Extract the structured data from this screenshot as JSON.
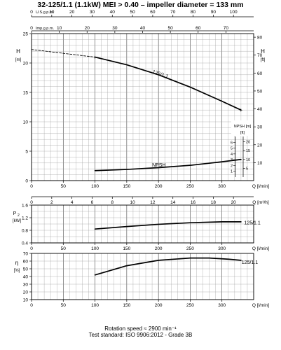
{
  "title": "32-125/1.1 (1.1kW) MEI > 0.40 – impeller diameter = 133 mm",
  "footer": {
    "rotation": "Rotation speed ≈ 2900 min⁻¹",
    "standard": "Test standard: ISO 9906:2012 - Grade 3B"
  },
  "chart_data": {
    "type": "line",
    "x_axes": {
      "main": {
        "label": "Q [l/min]",
        "range": [
          0,
          350
        ],
        "ticks": [
          0,
          50,
          100,
          150,
          200,
          250,
          300
        ]
      },
      "top_usgpm": {
        "label": "U.S.g.p.m.",
        "range": [
          0,
          110
        ],
        "ticks": [
          0,
          10,
          20,
          30,
          40,
          50,
          60,
          70,
          80,
          90,
          100
        ]
      },
      "top_impgpm": {
        "label": "Imp.g.p.m.",
        "range": [
          0,
          80
        ],
        "ticks": [
          0,
          10,
          20,
          30,
          40,
          50,
          60,
          70
        ]
      },
      "m3h": {
        "label": "Q [m³/h]",
        "range": [
          0,
          22
        ],
        "ticks": [
          0,
          2,
          4,
          6,
          8,
          10,
          12,
          14,
          16,
          18,
          20
        ]
      }
    },
    "panels": [
      {
        "id": "head",
        "ylabel": "H [m]",
        "ylabel_parts": [
          "H",
          "[m]"
        ],
        "ylim": [
          0,
          25
        ],
        "yticks": [
          0,
          5,
          10,
          15,
          20,
          25
        ],
        "ylabel_right": "H [ft]",
        "ylabel_right_parts": [
          "H",
          "[ft]"
        ],
        "ylim_right": [
          0,
          82
        ],
        "yticks_right": [
          10,
          20,
          30,
          40,
          50,
          60,
          70,
          80
        ],
        "series": [
          {
            "name": "125/1.1",
            "x": [
              100,
              150,
              200,
              250,
              300,
              330
            ],
            "y": [
              21.0,
              19.7,
              18.0,
              15.9,
              13.5,
              12.0
            ]
          }
        ],
        "extrapolation": {
          "x": [
            0,
            100
          ],
          "y": [
            22.3,
            21.0
          ]
        },
        "curve_points": [
          {
            "x": 100,
            "y": 21.0
          },
          {
            "x": 330,
            "y": 12.0
          }
        ]
      },
      {
        "id": "npsh",
        "ylim": [
          0,
          25
        ],
        "series": [
          {
            "name": "NPSH",
            "x": [
              100,
              150,
              200,
              250,
              300,
              330
            ],
            "y": [
              1.7,
              1.9,
              2.2,
              2.6,
              3.2,
              3.6
            ]
          }
        ],
        "inset_axis": {
          "label_m": "NPSH [m]",
          "label_ft": "[ft]",
          "m_range": [
            0,
            7
          ],
          "m_ticks": [
            1,
            2,
            3,
            4,
            5,
            6
          ],
          "ft_range": [
            0,
            23
          ],
          "ft_ticks": [
            5,
            10,
            15,
            20
          ]
        }
      },
      {
        "id": "power",
        "ylabel": "P2 [kW]",
        "ylabel_parts": [
          "P",
          "2",
          "[kW]"
        ],
        "ylim": [
          0.4,
          1.6
        ],
        "yticks": [
          0.4,
          0.8,
          1.2,
          1.6
        ],
        "series": [
          {
            "name": "125/1.1",
            "x": [
              100,
              150,
              200,
              250,
              300,
              330
            ],
            "y": [
              0.84,
              0.92,
              0.99,
              1.04,
              1.07,
              1.07
            ]
          }
        ]
      },
      {
        "id": "efficiency",
        "ylabel": "η [%]",
        "ylabel_parts": [
          "η",
          "[%]"
        ],
        "ylim": [
          10,
          70
        ],
        "yticks": [
          10,
          20,
          30,
          40,
          50,
          60,
          70
        ],
        "series": [
          {
            "name": "125/1.1",
            "x": [
              100,
              150,
              200,
              250,
              280,
              310,
              330
            ],
            "y": [
              42,
              54,
              61,
              64,
              64,
              62.5,
              61
            ]
          }
        ]
      }
    ],
    "grid": true,
    "legend": "inline labels on curves"
  }
}
